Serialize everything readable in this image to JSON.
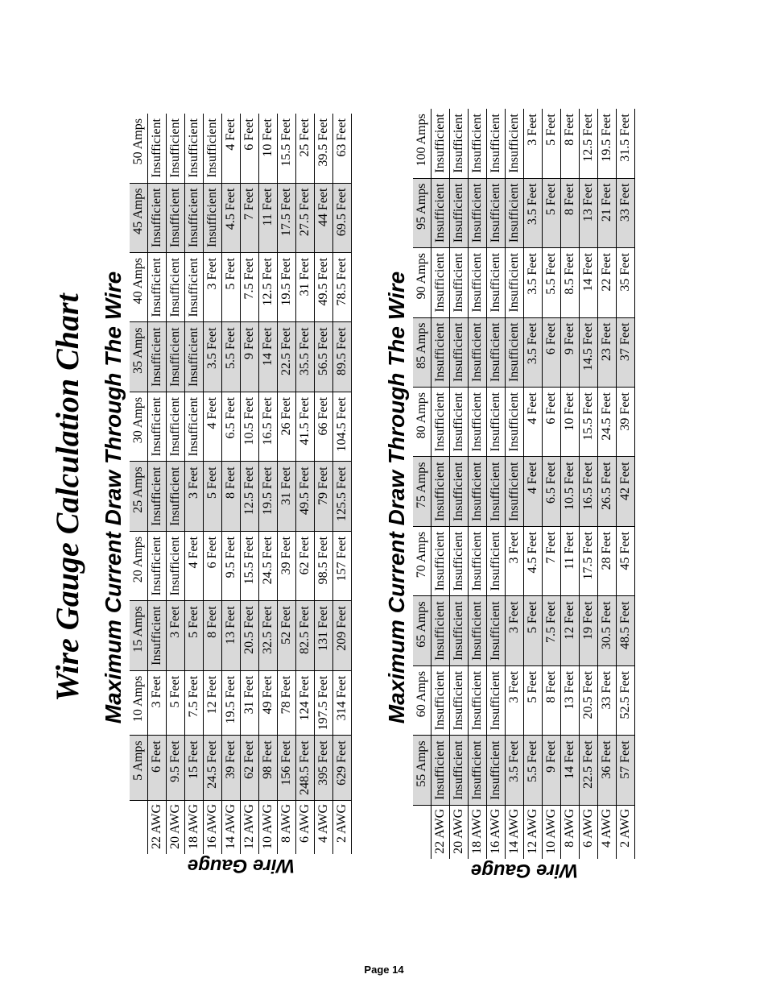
{
  "page_title": "Wire Gauge Calculation Chart",
  "page_number": "Page 14",
  "side_label": "Wire Gauge",
  "table1": {
    "title": "Maximum Current Draw Through The Wire",
    "row_headers": [
      "22 AWG",
      "20 AWG",
      "18 AWG",
      "16 AWG",
      "14 AWG",
      "12 AWG",
      "10 AWG",
      "8 AWG",
      "6 AWG",
      "4 AWG",
      "2 AWG"
    ],
    "columns": [
      "5 Amps",
      "10 Amps",
      "15 Amps",
      "20 Amps",
      "25 Amps",
      "30 Amps",
      "35 Amps",
      "40 Amps",
      "45 Amps",
      "50 Amps"
    ],
    "shaded_cols": [
      0,
      2,
      4,
      6,
      8
    ],
    "rows": [
      [
        "6 Feet",
        "3 Feet",
        "Insufficient",
        "Insufficient",
        "Insufficient",
        "Insufficient",
        "Insufficient",
        "Insufficient",
        "Insufficient",
        "Insufficient"
      ],
      [
        "9.5 Feet",
        "5 Feet",
        "3 Feet",
        "Insufficient",
        "Insufficient",
        "Insufficient",
        "Insufficient",
        "Insufficient",
        "Insufficient",
        "Insufficient"
      ],
      [
        "15 Feet",
        "7.5 Feet",
        "5 Feet",
        "4 Feet",
        "3 Feet",
        "Insufficient",
        "Insufficient",
        "Insufficient",
        "Insufficient",
        "Insufficient"
      ],
      [
        "24.5 Feet",
        "12 Feet",
        "8 Feet",
        "6 Feet",
        "5 Feet",
        "4 Feet",
        "3.5 Feet",
        "3 Feet",
        "Insufficient",
        "Insufficient"
      ],
      [
        "39 Feet",
        "19.5 Feet",
        "13 Feet",
        "9.5 Feet",
        "8 Feet",
        "6.5 Feet",
        "5.5 Feet",
        "5 Feet",
        "4.5 Feet",
        "4 Feet"
      ],
      [
        "62 Feet",
        "31 Feet",
        "20.5 Feet",
        "15.5 Feet",
        "12.5 Feet",
        "10.5 Feet",
        "9 Feet",
        "7.5 Feet",
        "7 Feet",
        "6 Feet"
      ],
      [
        "98 Feet",
        "49 Feet",
        "32.5 Feet",
        "24.5 Feet",
        "19.5 Feet",
        "16.5 Feet",
        "14 Feet",
        "12.5 Feet",
        "11 Feet",
        "10 Feet"
      ],
      [
        "156 Feet",
        "78 Feet",
        "52 Feet",
        "39 Feet",
        "31 Feet",
        "26 Feet",
        "22.5 Feet",
        "19.5 Feet",
        "17.5 Feet",
        "15.5 Feet"
      ],
      [
        "248.5 Feet",
        "124 Feet",
        "82.5 Feet",
        "62 Feet",
        "49.5 Feet",
        "41.5 Feet",
        "35.5 Feet",
        "31 Feet",
        "27.5 Feet",
        "25 Feet"
      ],
      [
        "395 Feet",
        "197.5 Feet",
        "131 Feet",
        "98.5 Feet",
        "79 Feet",
        "66 Feet",
        "56.5 Feet",
        "49.5 Feet",
        "44 Feet",
        "39.5 Feet"
      ],
      [
        "629 Feet",
        "314 Feet",
        "209 Feet",
        "157 Feet",
        "125.5 Feet",
        "104.5 Feet",
        "89.5 Feet",
        "78.5 Feet",
        "69.5 Feet",
        "63 Feet"
      ]
    ]
  },
  "table2": {
    "title": "Maximum Current Draw Through The Wire",
    "row_headers": [
      "22 AWG",
      "20 AWG",
      "18 AWG",
      "16 AWG",
      "14 AWG",
      "12 AWG",
      "10 AWG",
      "8 AWG",
      "6 AWG",
      "4 AWG",
      "2 AWG"
    ],
    "columns": [
      "55 Amps",
      "60 Amps",
      "65 Amps",
      "70 Amps",
      "75 Amps",
      "80 Amps",
      "85 Amps",
      "90 Amps",
      "95 Amps",
      "100 Amps"
    ],
    "shaded_cols": [
      0,
      2,
      4,
      6,
      8
    ],
    "rows": [
      [
        "Insufficient",
        "Insufficient",
        "Insufficient",
        "Insufficient",
        "Insufficient",
        "Insufficient",
        "Insufficient",
        "Insufficient",
        "Insufficient",
        "Insufficient"
      ],
      [
        "Insufficient",
        "Insufficient",
        "Insufficient",
        "Insufficient",
        "Insufficient",
        "Insufficient",
        "Insufficient",
        "Insufficient",
        "Insufficient",
        "Insufficient"
      ],
      [
        "Insufficient",
        "Insufficient",
        "Insufficient",
        "Insufficient",
        "Insufficient",
        "Insufficient",
        "Insufficient",
        "Insufficient",
        "Insufficient",
        "Insufficient"
      ],
      [
        "Insufficient",
        "Insufficient",
        "Insufficient",
        "Insufficient",
        "Insufficient",
        "Insufficient",
        "Insufficient",
        "Insufficient",
        "Insufficient",
        "Insufficient"
      ],
      [
        "3.5 Feet",
        "3 Feet",
        "3 Feet",
        "3 Feet",
        "Insufficient",
        "Insufficient",
        "Insufficient",
        "Insufficient",
        "Insufficient",
        "Insufficient"
      ],
      [
        "5.5 Feet",
        "5 Feet",
        "5 Feet",
        "4.5 Feet",
        "4 Feet",
        "4 Feet",
        "3.5 Feet",
        "3.5 Feet",
        "3.5 Feet",
        "3 Feet"
      ],
      [
        "9 Feet",
        "8 Feet",
        "7.5 Feet",
        "7 Feet",
        "6.5 Feet",
        "6 Feet",
        "6 Feet",
        "5.5 Feet",
        "5 Feet",
        "5 Feet"
      ],
      [
        "14 Feet",
        "13 Feet",
        "12 Feet",
        "11 Feet",
        "10.5 Feet",
        "10 Feet",
        "9 Feet",
        "8.5 Feet",
        "8 Feet",
        "8 Feet"
      ],
      [
        "22.5 Feet",
        "20.5 Feet",
        "19 Feet",
        "17.5 Feet",
        "16.5 Feet",
        "15.5 Feet",
        "14.5 Feet",
        "14 Feet",
        "13 Feet",
        "12.5 Feet"
      ],
      [
        "36 Feet",
        "33 Feet",
        "30.5 Feet",
        "28 Feet",
        "26.5 Feet",
        "24.5 Feet",
        "23 Feet",
        "22 Feet",
        "21 Feet",
        "19.5 Feet"
      ],
      [
        "57 Feet",
        "52.5 Feet",
        "48.5 Feet",
        "45 Feet",
        "42 Feet",
        "39 Feet",
        "37 Feet",
        "35 Feet",
        "33 Feet",
        "31.5 Feet"
      ]
    ]
  }
}
